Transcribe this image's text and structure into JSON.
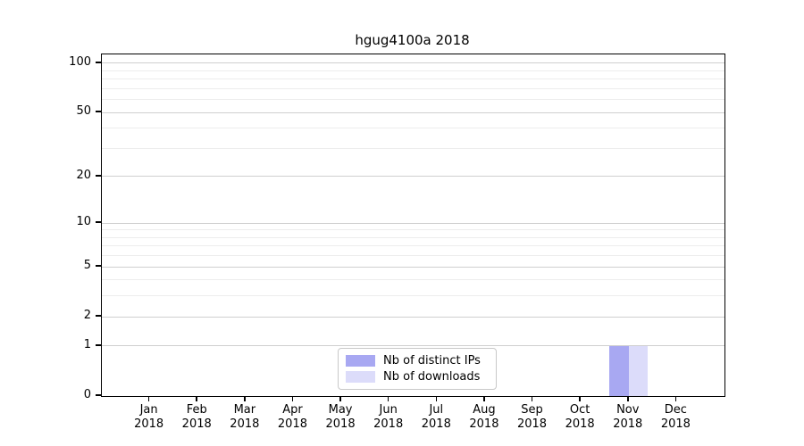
{
  "figure": {
    "title": "hgug4100a 2018"
  },
  "chart_data": {
    "type": "bar",
    "title": "hgug4100a 2018",
    "categories": [
      "Jan",
      "Feb",
      "Mar",
      "Apr",
      "May",
      "Jun",
      "Jul",
      "Aug",
      "Sep",
      "Oct",
      "Nov",
      "Dec"
    ],
    "x_tick_second_line": "2018",
    "series": [
      {
        "name": "Nb of distinct IPs",
        "color": "#a8a8f2",
        "values": [
          0,
          0,
          0,
          0,
          0,
          0,
          0,
          0,
          0,
          0,
          1,
          0
        ]
      },
      {
        "name": "Nb of downloads",
        "color": "#dcdcfa",
        "values": [
          0,
          0,
          0,
          0,
          0,
          0,
          0,
          0,
          0,
          0,
          1,
          0
        ]
      }
    ],
    "yscale": "log1p",
    "ylim": [
      0,
      113
    ],
    "y_ticks": [
      0,
      1,
      2,
      5,
      10,
      20,
      50,
      100
    ],
    "y_minor_gridlines": [
      3,
      4,
      6,
      7,
      8,
      9,
      30,
      40,
      60,
      70,
      80,
      90
    ],
    "grid": "horizontal-only",
    "legend": {
      "position": "lower-center-inside",
      "entries": [
        "Nb of distinct IPs",
        "Nb of downloads"
      ]
    }
  },
  "colors": {
    "axis": "#000000",
    "major_grid": "#cfcfcf",
    "minor_grid": "#ededed",
    "legend_border": "#c8c8c8",
    "bar_distinct_ips": "#a8a8f2",
    "bar_downloads": "#dcdcfa",
    "background": "#ffffff"
  }
}
